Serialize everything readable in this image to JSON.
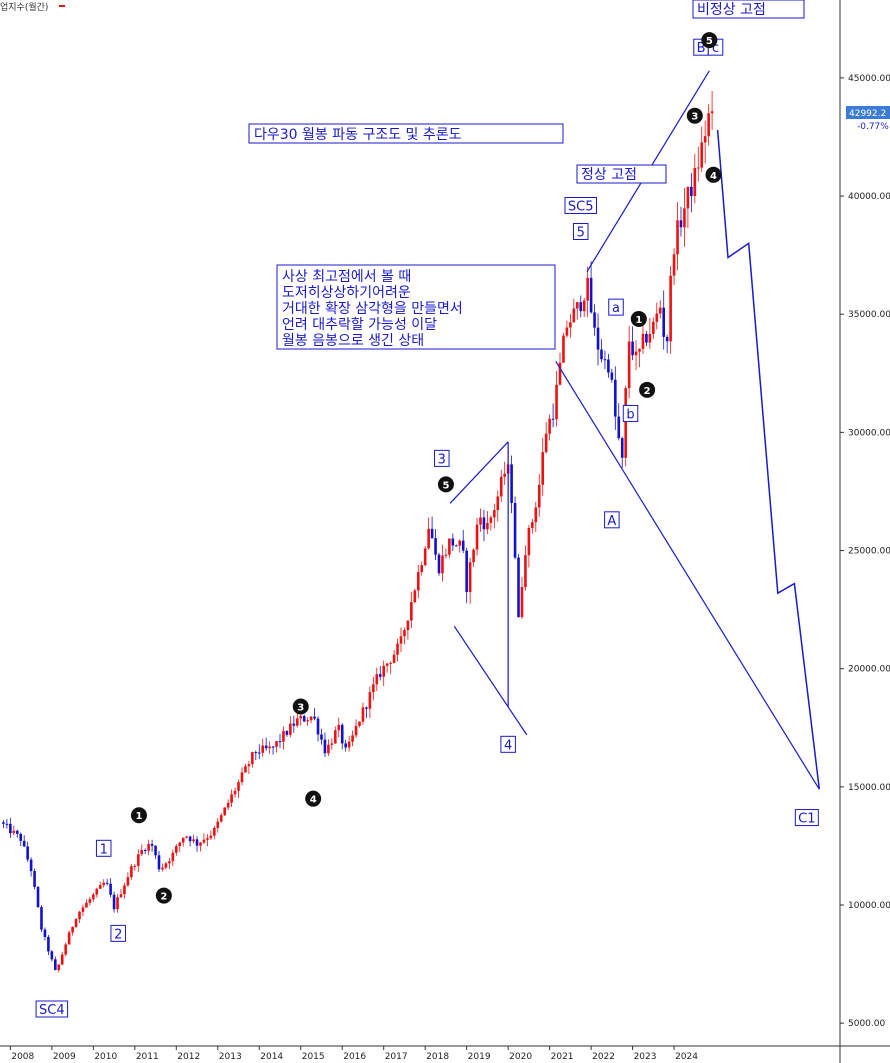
{
  "series_label": "업지수(월간)",
  "chart_data": {
    "type": "candlestick",
    "ylim": [
      4500,
      48000
    ],
    "y_ticks": [
      5000,
      10000,
      15000,
      20000,
      25000,
      30000,
      35000,
      40000,
      45000
    ],
    "y_tick_labels": [
      "5000.00",
      "10000.00",
      "15000.00",
      "20000.00",
      "25000.00",
      "30000.00",
      "35000.00",
      "40000.00",
      "45000.00"
    ],
    "x_ticks": [
      "2008",
      "2009",
      "2010",
      "2011",
      "2012",
      "2013",
      "2014",
      "2015",
      "2016",
      "2017",
      "2018",
      "2019",
      "2020",
      "2021",
      "2022",
      "2023",
      "2024"
    ],
    "last_price": "42992.2",
    "last_change": "-0.77%",
    "colors": {
      "up": "#ee1111",
      "down": "#1111cc",
      "annotation": "#1a1acc"
    },
    "monthly_close_path": [
      [
        2007.75,
        13500
      ],
      [
        2008.25,
        12800
      ],
      [
        2008.5,
        11500
      ],
      [
        2008.75,
        9000
      ],
      [
        2009.1,
        7100
      ],
      [
        2009.3,
        8200
      ],
      [
        2009.6,
        9600
      ],
      [
        2010.0,
        10400
      ],
      [
        2010.3,
        11000
      ],
      [
        2010.5,
        9900
      ],
      [
        2010.9,
        11500
      ],
      [
        2011.2,
        12400
      ],
      [
        2011.4,
        12600
      ],
      [
        2011.6,
        11500
      ],
      [
        2011.9,
        12100
      ],
      [
        2012.2,
        13000
      ],
      [
        2012.5,
        12600
      ],
      [
        2012.9,
        13100
      ],
      [
        2013.3,
        14500
      ],
      [
        2013.9,
        16500
      ],
      [
        2014.3,
        16600
      ],
      [
        2014.9,
        17800
      ],
      [
        2015.3,
        18000
      ],
      [
        2015.6,
        16500
      ],
      [
        2015.9,
        17500
      ],
      [
        2016.1,
        16400
      ],
      [
        2016.4,
        17800
      ],
      [
        2016.9,
        19800
      ],
      [
        2017.4,
        21000
      ],
      [
        2017.9,
        24500
      ],
      [
        2018.1,
        26200
      ],
      [
        2018.3,
        24200
      ],
      [
        2018.6,
        25400
      ],
      [
        2018.9,
        25100
      ],
      [
        2018.98,
        23300
      ],
      [
        2019.3,
        26500
      ],
      [
        2019.5,
        26000
      ],
      [
        2019.7,
        27000
      ],
      [
        2019.95,
        28500
      ],
      [
        2020.05,
        28200
      ],
      [
        2020.15,
        25400
      ],
      [
        2020.25,
        22000
      ],
      [
        2020.4,
        25000
      ],
      [
        2020.6,
        26400
      ],
      [
        2020.75,
        27800
      ],
      [
        2020.9,
        30000
      ],
      [
        2021.1,
        31000
      ],
      [
        2021.4,
        34500
      ],
      [
        2021.7,
        35300
      ],
      [
        2021.9,
        36300
      ],
      [
        2022.1,
        34000
      ],
      [
        2022.3,
        33000
      ],
      [
        2022.45,
        32900
      ],
      [
        2022.55,
        31000
      ],
      [
        2022.75,
        28700
      ],
      [
        2022.9,
        34000
      ],
      [
        2023.1,
        33000
      ],
      [
        2023.3,
        34000
      ],
      [
        2023.5,
        34500
      ],
      [
        2023.7,
        35500
      ],
      [
        2023.8,
        33000
      ],
      [
        2023.9,
        36000
      ],
      [
        2024.0,
        38000
      ],
      [
        2024.3,
        39800
      ],
      [
        2024.5,
        40800
      ],
      [
        2024.7,
        42300
      ],
      [
        2024.85,
        43500
      ],
      [
        2024.95,
        42992
      ]
    ],
    "wave_labels": [
      {
        "id": "sc4",
        "text": "SC4",
        "x": 2009.0,
        "y": 5600
      },
      {
        "id": "w1",
        "text": "1",
        "x": 2010.25,
        "y": 12400
      },
      {
        "id": "w2",
        "text": "2",
        "x": 2010.6,
        "y": 8800
      },
      {
        "id": "w3",
        "text": "3",
        "x": 2018.4,
        "y": 28900
      },
      {
        "id": "w4",
        "text": "4",
        "x": 2020.0,
        "y": 16800
      },
      {
        "id": "w5",
        "text": "5",
        "x": 2021.75,
        "y": 38500
      },
      {
        "id": "sc5",
        "text": "SC5",
        "x": 2021.75,
        "y": 39600
      },
      {
        "id": "wa",
        "text": "a",
        "x": 2022.6,
        "y": 35300
      },
      {
        "id": "wb",
        "text": "b",
        "x": 2022.95,
        "y": 30800
      },
      {
        "id": "wA",
        "text": "A",
        "x": 2022.5,
        "y": 26300
      },
      {
        "id": "wB",
        "text": "B",
        "x": 2024.65,
        "y": 46300
      },
      {
        "id": "wc",
        "text": "c",
        "x": 2025.0,
        "y": 46300
      },
      {
        "id": "wC1",
        "text": "C1",
        "x": 2027.2,
        "y": 13700
      }
    ],
    "circle_labels": [
      {
        "id": "c1a",
        "text": "1",
        "x": 2011.1,
        "y": 13800
      },
      {
        "id": "c2a",
        "text": "2",
        "x": 2011.7,
        "y": 10400
      },
      {
        "id": "c3a",
        "text": "3",
        "x": 2015.0,
        "y": 18400
      },
      {
        "id": "c4a",
        "text": "4",
        "x": 2015.3,
        "y": 14500
      },
      {
        "id": "c5b",
        "text": "5",
        "x": 2018.5,
        "y": 27800
      },
      {
        "id": "c1c",
        "text": "1",
        "x": 2023.15,
        "y": 34800
      },
      {
        "id": "c2c",
        "text": "2",
        "x": 2023.35,
        "y": 31800
      },
      {
        "id": "c3c",
        "text": "3",
        "x": 2024.5,
        "y": 43400
      },
      {
        "id": "c4c",
        "text": "4",
        "x": 2024.95,
        "y": 40900
      },
      {
        "id": "c5c",
        "text": "5",
        "x": 2024.85,
        "y": 46600
      }
    ],
    "trendlines": [
      [
        [
          2018.6,
          27000
        ],
        [
          2020.0,
          29600
        ]
      ],
      [
        [
          2018.7,
          21800
        ],
        [
          2020.45,
          17200
        ]
      ],
      [
        [
          2020.0,
          29600
        ],
        [
          2020.0,
          18400
        ]
      ],
      [
        [
          2021.15,
          33000
        ],
        [
          2027.5,
          14900
        ]
      ],
      [
        [
          2021.9,
          36800
        ],
        [
          2024.85,
          45300
        ]
      ]
    ],
    "projection_path": [
      [
        2025.05,
        42800
      ],
      [
        2025.3,
        37400
      ],
      [
        2025.8,
        38000
      ],
      [
        2026.5,
        23200
      ],
      [
        2026.9,
        23600
      ],
      [
        2027.5,
        14900
      ]
    ],
    "annotations": {
      "title": "다우30 월봉 파동 구조도 및 추론도",
      "normal_top": "정상 고점",
      "abnormal_top": "비정상 고점",
      "note_lines": [
        "사상 최고점에서 볼 때",
        "도저히상상하기어려운",
        "거대한 확장 삼각형을 만들면서",
        "언려 대추락할 가능성 이달",
        "월봉 음봉으로 생긴 상태"
      ]
    }
  }
}
